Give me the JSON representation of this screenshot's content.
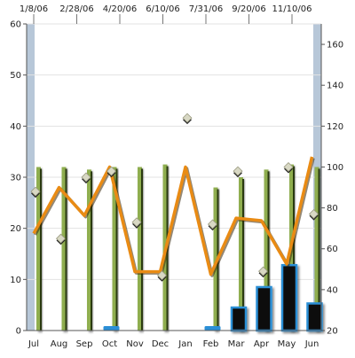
{
  "chart_data": {
    "type": "bar",
    "categories": [
      "Jul",
      "Aug",
      "Sep",
      "Oct",
      "Nov",
      "Dec",
      "Jan",
      "Feb",
      "Mar",
      "Apr",
      "May",
      "Jun"
    ],
    "top_axis_labels": [
      "1/8/06",
      "2/28/06",
      "4/20/06",
      "6/10/06",
      "7/31/06",
      "9/20/06",
      "11/10/06"
    ],
    "left_axis": {
      "min": 0,
      "max": 60,
      "ticks": [
        0,
        10,
        20,
        30,
        40,
        50,
        60
      ]
    },
    "right_axis": {
      "min": 20,
      "max": 170,
      "ticks": [
        20,
        40,
        60,
        80,
        100,
        120,
        140,
        160
      ]
    },
    "series": [
      {
        "type": "bar",
        "axis": "left",
        "color": "#8fae4f",
        "values": [
          32,
          32,
          31.5,
          32,
          32,
          32.5,
          null,
          28,
          30,
          31.5,
          32.5,
          32
        ]
      },
      {
        "type": "bar",
        "axis": "left",
        "color": "#111111",
        "stroke": "#2b8fd6",
        "values": [
          null,
          null,
          null,
          1,
          null,
          null,
          null,
          0.5,
          4.5,
          8.5,
          12.8,
          5.3
        ]
      },
      {
        "type": "line",
        "axis": "left",
        "color": "#e98b14",
        "values": [
          19,
          28,
          22.5,
          32,
          11.5,
          11.5,
          32,
          11,
          22,
          21.5,
          13,
          34
        ]
      },
      {
        "type": "scatter",
        "axis": "right",
        "color": "#d8d8c4",
        "values": [
          88,
          65,
          95,
          98,
          73,
          47,
          124,
          72,
          98,
          49,
          100,
          77
        ]
      }
    ],
    "grid": true
  }
}
